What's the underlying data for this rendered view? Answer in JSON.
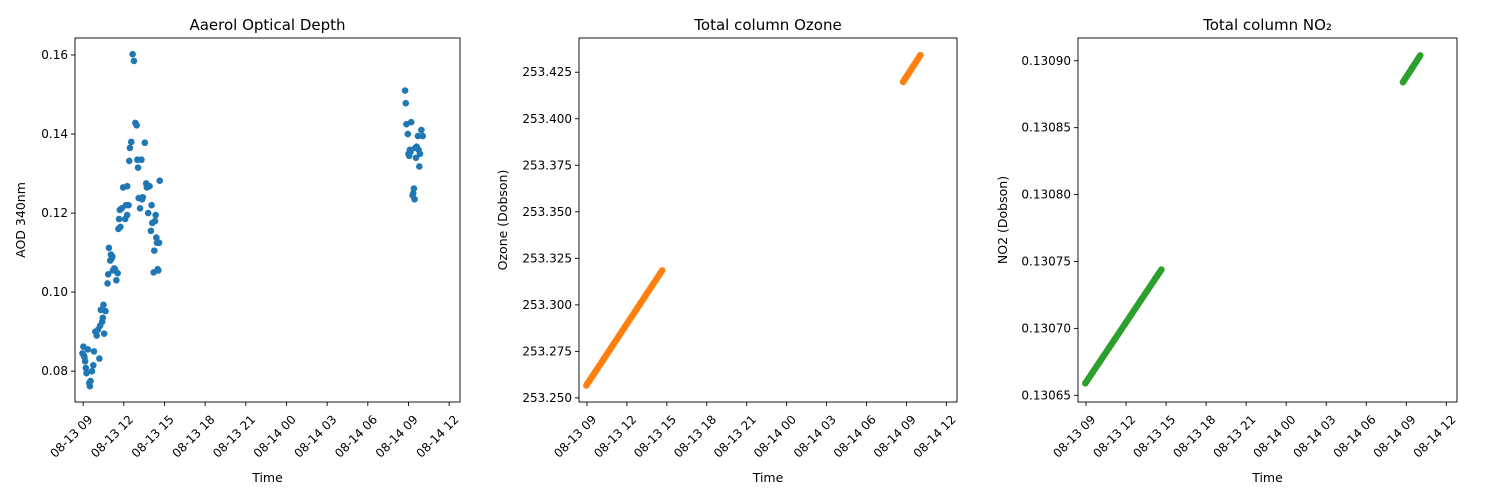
{
  "chart_data": [
    {
      "type": "scatter",
      "title": "Aaerol Optical Depth",
      "xlabel": "Time",
      "ylabel": "AOD 340nm",
      "color": "#1f77b4",
      "xlim": [
        8.4,
        36.8
      ],
      "ylim": [
        0.0722,
        0.1643
      ],
      "x_ticks": [
        9,
        12,
        15,
        18,
        21,
        24,
        27,
        30,
        33,
        36
      ],
      "x_tick_labels": [
        "08-13 09",
        "08-13 12",
        "08-13 15",
        "08-13 18",
        "08-13 21",
        "08-14 00",
        "08-14 03",
        "08-14 06",
        "08-14 09",
        "08-14 12"
      ],
      "y_ticks": [
        0.08,
        0.1,
        0.12,
        0.14,
        0.16
      ],
      "y_tick_labels": [
        "0.08",
        "0.10",
        "0.12",
        "0.14",
        "0.16"
      ],
      "points": [
        [
          8.95,
          0.0845
        ],
        [
          9.02,
          0.0862
        ],
        [
          9.05,
          0.084
        ],
        [
          9.1,
          0.0835
        ],
        [
          9.15,
          0.0825
        ],
        [
          9.2,
          0.0808
        ],
        [
          9.25,
          0.0795
        ],
        [
          9.35,
          0.0855
        ],
        [
          9.45,
          0.077
        ],
        [
          9.5,
          0.0762
        ],
        [
          9.55,
          0.0775
        ],
        [
          9.65,
          0.08
        ],
        [
          9.75,
          0.0815
        ],
        [
          9.8,
          0.085
        ],
        [
          9.9,
          0.09
        ],
        [
          10.0,
          0.089
        ],
        [
          10.1,
          0.0905
        ],
        [
          10.2,
          0.0832
        ],
        [
          10.25,
          0.0915
        ],
        [
          10.3,
          0.0955
        ],
        [
          10.4,
          0.0925
        ],
        [
          10.45,
          0.0935
        ],
        [
          10.5,
          0.0968
        ],
        [
          10.55,
          0.0895
        ],
        [
          10.65,
          0.0952
        ],
        [
          10.8,
          0.1022
        ],
        [
          10.85,
          0.1045
        ],
        [
          10.9,
          0.1112
        ],
        [
          11.0,
          0.108
        ],
        [
          11.05,
          0.1095
        ],
        [
          11.1,
          0.1085
        ],
        [
          11.15,
          0.109
        ],
        [
          11.2,
          0.1055
        ],
        [
          11.3,
          0.106
        ],
        [
          11.35,
          0.1058
        ],
        [
          11.45,
          0.103
        ],
        [
          11.55,
          0.1048
        ],
        [
          11.6,
          0.116
        ],
        [
          11.65,
          0.1185
        ],
        [
          11.7,
          0.1208
        ],
        [
          11.75,
          0.1165
        ],
        [
          11.85,
          0.1212
        ],
        [
          11.95,
          0.1265
        ],
        [
          12.1,
          0.1185
        ],
        [
          12.15,
          0.122
        ],
        [
          12.25,
          0.1268
        ],
        [
          12.25,
          0.1195
        ],
        [
          12.35,
          0.122
        ],
        [
          12.4,
          0.1332
        ],
        [
          12.45,
          0.1365
        ],
        [
          12.55,
          0.138
        ],
        [
          12.65,
          0.1602
        ],
        [
          12.75,
          0.1585
        ],
        [
          12.85,
          0.1428
        ],
        [
          12.95,
          0.1422
        ],
        [
          13.0,
          0.1335
        ],
        [
          13.05,
          0.1315
        ],
        [
          13.1,
          0.1238
        ],
        [
          13.2,
          0.1212
        ],
        [
          13.3,
          0.1335
        ],
        [
          13.35,
          0.1235
        ],
        [
          13.4,
          0.124
        ],
        [
          13.55,
          0.1378
        ],
        [
          13.65,
          0.1275
        ],
        [
          13.7,
          0.1265
        ],
        [
          13.8,
          0.12
        ],
        [
          13.9,
          0.1268
        ],
        [
          14.0,
          0.1155
        ],
        [
          14.05,
          0.122
        ],
        [
          14.1,
          0.1175
        ],
        [
          14.2,
          0.105
        ],
        [
          14.25,
          0.1105
        ],
        [
          14.3,
          0.118
        ],
        [
          14.35,
          0.1195
        ],
        [
          14.4,
          0.1138
        ],
        [
          14.45,
          0.1125
        ],
        [
          14.5,
          0.1058
        ],
        [
          14.55,
          0.1055
        ],
        [
          14.6,
          0.1125
        ],
        [
          14.65,
          0.1282
        ],
        [
          32.75,
          0.151
        ],
        [
          32.8,
          0.1478
        ],
        [
          32.85,
          0.1425
        ],
        [
          32.95,
          0.14
        ],
        [
          33.0,
          0.135
        ],
        [
          33.05,
          0.1345
        ],
        [
          33.1,
          0.136
        ],
        [
          33.15,
          0.1355
        ],
        [
          33.2,
          0.143
        ],
        [
          33.3,
          0.1245
        ],
        [
          33.35,
          0.125
        ],
        [
          33.4,
          0.1262
        ],
        [
          33.45,
          0.1235
        ],
        [
          33.5,
          0.1365
        ],
        [
          33.55,
          0.134
        ],
        [
          33.6,
          0.1368
        ],
        [
          33.7,
          0.1395
        ],
        [
          33.75,
          0.136
        ],
        [
          33.8,
          0.1318
        ],
        [
          33.85,
          0.135
        ],
        [
          33.95,
          0.141
        ],
        [
          34.05,
          0.1395
        ]
      ]
    },
    {
      "type": "scatter",
      "title": "Total column Ozone",
      "xlabel": "Time",
      "ylabel": "Ozone (Dobson)",
      "color": "#ff7f0e",
      "xlim": [
        8.4,
        36.8
      ],
      "ylim": [
        253.2478,
        253.4434
      ],
      "x_ticks": [
        9,
        12,
        15,
        18,
        21,
        24,
        27,
        30,
        33,
        36
      ],
      "x_tick_labels": [
        "08-13 09",
        "08-13 12",
        "08-13 15",
        "08-13 18",
        "08-13 21",
        "08-14 00",
        "08-14 03",
        "08-14 06",
        "08-14 09",
        "08-14 12"
      ],
      "y_ticks": [
        253.25,
        253.275,
        253.3,
        253.325,
        253.35,
        253.375,
        253.4,
        253.425
      ],
      "y_tick_labels": [
        "253.250",
        "253.275",
        "253.300",
        "253.325",
        "253.350",
        "253.375",
        "253.400",
        "253.425"
      ],
      "segments": [
        {
          "x_start": 8.95,
          "x_end": 14.65,
          "y_start": 253.2567,
          "y_end": 253.3185,
          "count": 70
        },
        {
          "x_start": 32.75,
          "x_end": 34.05,
          "y_start": 253.4198,
          "y_end": 253.4342,
          "count": 22
        }
      ]
    },
    {
      "type": "scatter",
      "title": "Total column NO₂",
      "xlabel": "Time",
      "ylabel": "NO2 (Dobson)",
      "color": "#2ca02c",
      "xlim": [
        8.4,
        36.8
      ],
      "ylim": [
        0.130645,
        0.130917
      ],
      "x_ticks": [
        9,
        12,
        15,
        18,
        21,
        24,
        27,
        30,
        33,
        36
      ],
      "x_tick_labels": [
        "08-13 09",
        "08-13 12",
        "08-13 15",
        "08-13 18",
        "08-13 21",
        "08-14 00",
        "08-14 03",
        "08-14 06",
        "08-14 09",
        "08-14 12"
      ],
      "y_ticks": [
        0.13065,
        0.1307,
        0.13075,
        0.1308,
        0.13085,
        0.1309
      ],
      "y_tick_labels": [
        "0.13065",
        "0.13070",
        "0.13075",
        "0.13080",
        "0.13085",
        "0.13090"
      ],
      "segments": [
        {
          "x_start": 8.95,
          "x_end": 14.65,
          "y_start": 0.130659,
          "y_end": 0.130744,
          "count": 70
        },
        {
          "x_start": 32.75,
          "x_end": 34.05,
          "y_start": 0.130884,
          "y_end": 0.130904,
          "count": 22
        }
      ]
    }
  ]
}
